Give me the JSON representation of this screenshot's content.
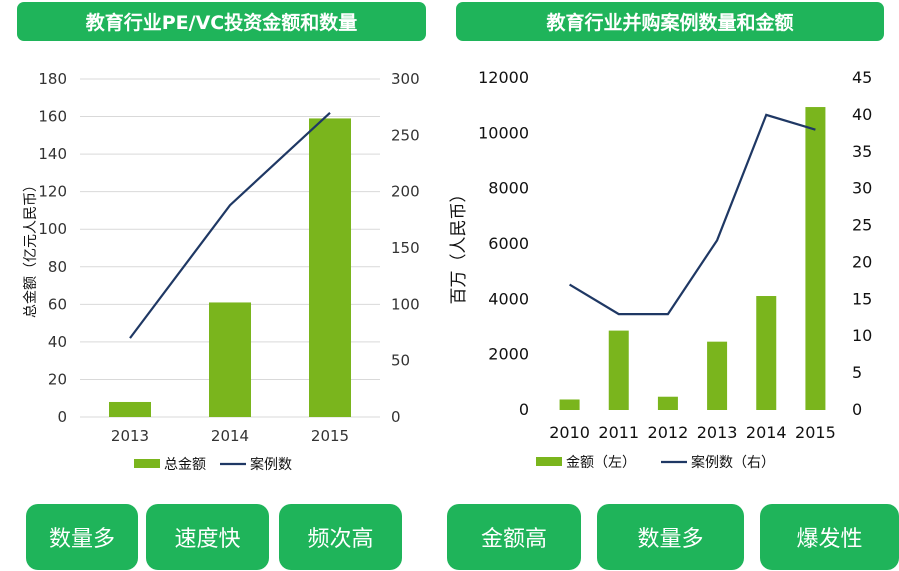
{
  "charts": {
    "left": {
      "title": "教育行业PE/VC投资金额和数量",
      "chart_data": {
        "type": "bar",
        "categories": [
          "2013",
          "2014",
          "2015"
        ],
        "series": [
          {
            "name": "总金额",
            "kind": "bar",
            "axis": "left",
            "values": [
              8,
              61,
              159
            ]
          },
          {
            "name": "案例数",
            "kind": "line",
            "axis": "right",
            "values": [
              70,
              188,
              270
            ]
          }
        ],
        "ylabel": "总金额（亿元人民币）",
        "ylim": [
          0,
          180
        ],
        "y_ticks": [
          "0",
          "20",
          "40",
          "60",
          "80",
          "100",
          "120",
          "140",
          "160",
          "180"
        ],
        "y2lim": [
          0,
          300
        ],
        "y2_ticks": [
          "0",
          "50",
          "100",
          "150",
          "200",
          "250",
          "300"
        ],
        "grid": true,
        "legend": "bottom"
      }
    },
    "right": {
      "title": "教育行业并购案例数量和金额",
      "chart_data": {
        "type": "bar",
        "categories": [
          "2010",
          "2011",
          "2012",
          "2013",
          "2014",
          "2015"
        ],
        "series": [
          {
            "name": "金额（左）",
            "kind": "bar",
            "axis": "left",
            "values": [
              380,
              2870,
              480,
              2470,
              4120,
              10950
            ]
          },
          {
            "name": "案例数（右）",
            "kind": "line",
            "axis": "right",
            "values": [
              17,
              13,
              13,
              23,
              40,
              38
            ]
          }
        ],
        "ylabel": "百万（人民币）",
        "ylim": [
          0,
          12000
        ],
        "y_ticks": [
          "0",
          "2000",
          "4000",
          "6000",
          "8000",
          "10000",
          "12000"
        ],
        "y2lim": [
          0,
          45
        ],
        "y2_ticks": [
          "0",
          "5",
          "10",
          "15",
          "20",
          "25",
          "30",
          "35",
          "40",
          "45"
        ],
        "grid": false,
        "legend": "bottom"
      }
    }
  },
  "colors": {
    "bar": "#7ab51d",
    "line": "#1f3864",
    "accent": "#1fb45a",
    "grid": "#d9d9d9"
  },
  "tags": {
    "left": [
      "数量多",
      "速度快",
      "频次高"
    ],
    "right": [
      "金额高",
      "数量多",
      "爆发性"
    ]
  }
}
